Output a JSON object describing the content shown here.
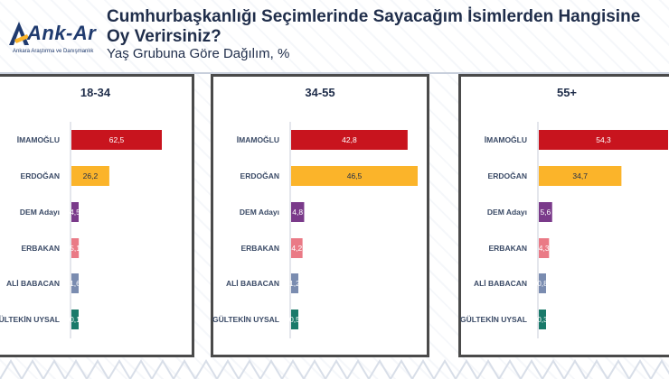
{
  "header": {
    "logo_text": "Ank-Ar",
    "logo_sub": "Ankara Araştırma ve Danışmanlık",
    "title": "Cumhurbaşkanlığı Seçimlerinde Sayacağım İsimlerden Hangisine Oy Verirsiniz?",
    "subtitle": "Yaş Grubuna Göre Dağılım, %"
  },
  "colors": {
    "İMAMOĞLU": "#c8141e",
    "ERDOĞAN": "#fbb42a",
    "DEM Adayı": "#7a3a8a",
    "ERBAKAN": "#ea7a86",
    "ALİ BABACAN": "#7a8cb0",
    "GÜLTEKİN UYSAL": "#1a7a6a"
  },
  "chart_data": [
    {
      "type": "bar",
      "title": "18-34",
      "categories": [
        "İMAMOĞLU",
        "ERDOĞAN",
        "DEM Adayı",
        "ERBAKAN",
        "ALİ BABACAN",
        "GÜLTEKİN UYSAL"
      ],
      "values": [
        62.5,
        26.2,
        4.5,
        5.1,
        1.6,
        0.1
      ],
      "value_labels": [
        "62,5",
        "26,2",
        "4,5",
        "5,1",
        "1,6",
        "0,1"
      ],
      "xlim": [
        0,
        62.5
      ]
    },
    {
      "type": "bar",
      "title": "34-55",
      "categories": [
        "İMAMOĞLU",
        "ERDOĞAN",
        "DEM Adayı",
        "ERBAKAN",
        "ALİ BABACAN",
        "GÜLTEKİN UYSAL"
      ],
      "values": [
        42.8,
        46.5,
        4.8,
        4.2,
        1.2,
        0.5
      ],
      "value_labels": [
        "42,8",
        "46,5",
        "4,8",
        "4,2",
        "1,2",
        "0,5"
      ],
      "xlim": [
        0,
        46.5
      ]
    },
    {
      "type": "bar",
      "title": "55+",
      "categories": [
        "İMAMOĞLU",
        "ERDOĞAN",
        "DEM Adayı",
        "ERBAKAN",
        "ALİ BABACAN",
        "GÜLTEKİN UYSAL"
      ],
      "values": [
        54.3,
        34.7,
        5.6,
        4.3,
        0.8,
        0.3
      ],
      "value_labels": [
        "54,3",
        "34,7",
        "5,6",
        "4,3",
        "0,8",
        "0,3"
      ],
      "xlim": [
        0,
        54.3
      ]
    }
  ]
}
